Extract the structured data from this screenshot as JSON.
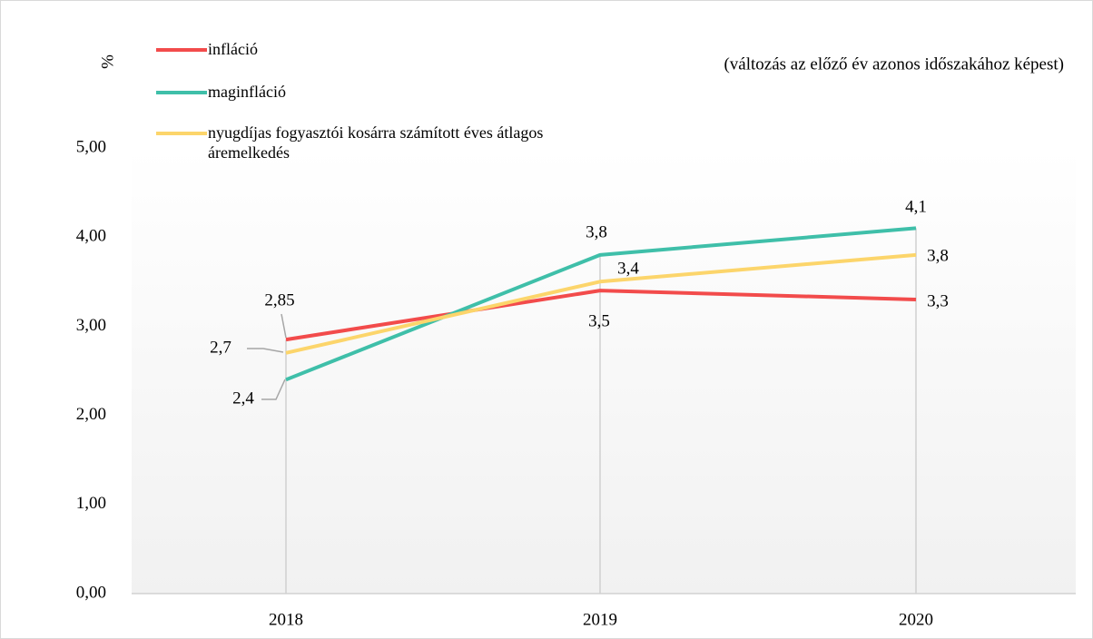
{
  "chart_data": {
    "type": "line",
    "subtitle": "(változás az előző év azonos időszakához képest)",
    "y_label": "%",
    "categories": [
      "2018",
      "2019",
      "2020"
    ],
    "series": [
      {
        "name": "infláció",
        "color": "#f24b4b",
        "values": [
          2.85,
          3.4,
          3.3
        ],
        "value_labels": [
          "2,85",
          "3,4",
          "3,3"
        ]
      },
      {
        "name": "maginfláció",
        "color": "#3fbfa9",
        "values": [
          2.4,
          3.8,
          4.1
        ],
        "value_labels": [
          "2,4",
          "3,8",
          "4,1"
        ]
      },
      {
        "name": "nyugdíjas fogyasztói kosárra számított éves átlagos áremelkedés",
        "color": "#fcd56b",
        "values": [
          2.7,
          3.5,
          3.8
        ],
        "value_labels": [
          "2,7",
          "3,5",
          "3,8"
        ]
      }
    ],
    "ylim": [
      0,
      5
    ],
    "yticks": [
      {
        "value": 0,
        "label": "0,00"
      },
      {
        "value": 1,
        "label": "1,00"
      },
      {
        "value": 2,
        "label": "2,00"
      },
      {
        "value": 3,
        "label": "3,00"
      },
      {
        "value": 4,
        "label": "4,00"
      },
      {
        "value": 5,
        "label": "5,00"
      }
    ],
    "legend": "top-left"
  }
}
